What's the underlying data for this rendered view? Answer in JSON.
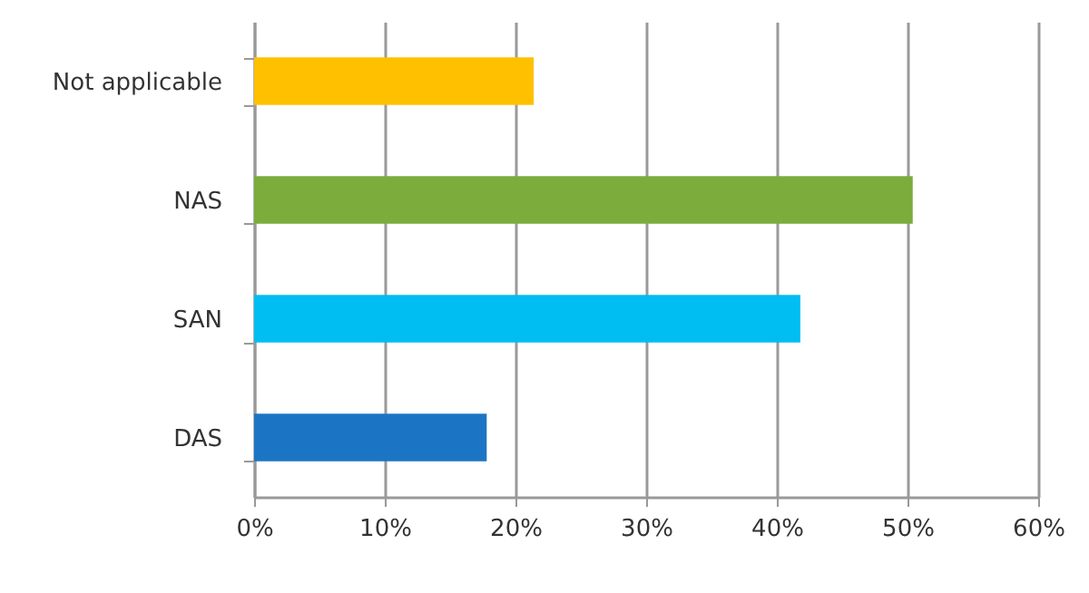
{
  "chart_data": {
    "type": "bar",
    "orientation": "horizontal",
    "categories": [
      "Not applicable",
      "NAS",
      "SAN",
      "DAS"
    ],
    "values": [
      21.4,
      50.4,
      41.8,
      17.8
    ],
    "colors": [
      "#ffc000",
      "#7cac3c",
      "#00bef2",
      "#1c75c4"
    ],
    "xlim": [
      0,
      60
    ],
    "xticks": [
      {
        "value": 0,
        "label": "0%"
      },
      {
        "value": 10,
        "label": "10%"
      },
      {
        "value": 20,
        "label": "20%"
      },
      {
        "value": 30,
        "label": "30%"
      },
      {
        "value": 40,
        "label": "40%"
      },
      {
        "value": 50,
        "label": "50%"
      },
      {
        "value": 60,
        "label": "60%"
      }
    ],
    "grid": "x"
  }
}
